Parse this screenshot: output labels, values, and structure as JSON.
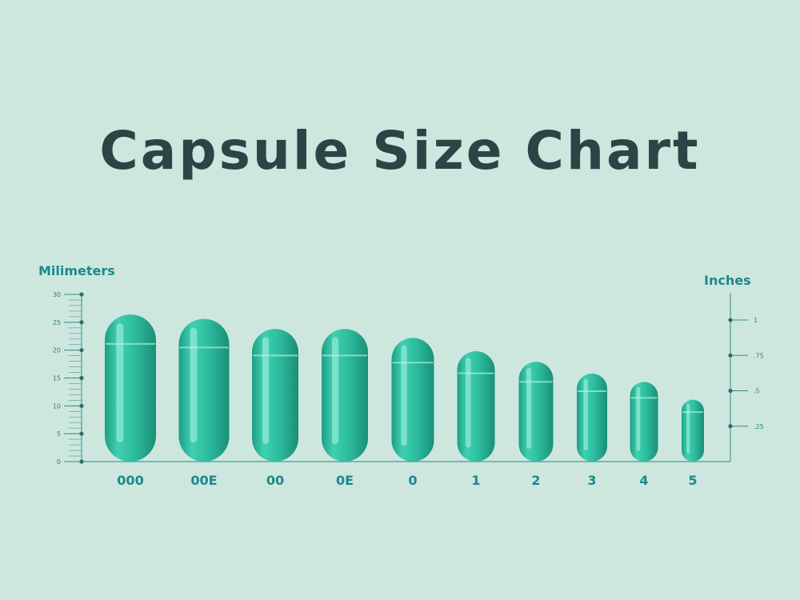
{
  "title": "Capsule Size Chart",
  "colors": {
    "background": "#cde7df",
    "capsule": "#2fbfa0",
    "axis": "#4a9a94",
    "label": "#1a8a8a",
    "title": "#2a4545"
  },
  "chart_data": {
    "type": "bar",
    "title": "Capsule Size Chart",
    "xlabel": "",
    "ylabel": "Milimeters",
    "y2label": "Inches",
    "categories": [
      "000",
      "00E",
      "00",
      "0E",
      "0",
      "1",
      "2",
      "3",
      "4",
      "5"
    ],
    "values": [
      26.4,
      25.6,
      23.8,
      23.8,
      22.2,
      19.8,
      17.9,
      15.8,
      14.3,
      11.1
    ],
    "ylim": [
      0,
      30
    ],
    "yticks": [
      0,
      5,
      10,
      15,
      20,
      25,
      30
    ],
    "y2ticks": [
      ".25",
      ".5",
      ".75",
      "1"
    ],
    "y2tick_values": [
      0.25,
      0.5,
      0.75,
      1
    ],
    "grid": false,
    "legend": "none"
  }
}
